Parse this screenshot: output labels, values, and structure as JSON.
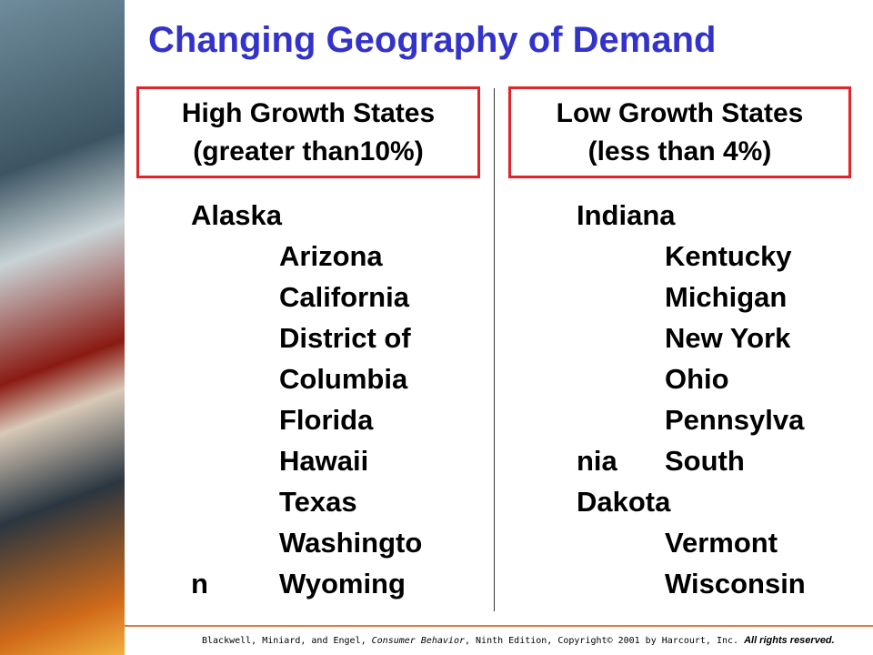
{
  "title": "Changing Geography of Demand",
  "columns": [
    {
      "header": [
        "High Growth States",
        "(greater than10%)"
      ],
      "rows": [
        {
          "a": "Alaska"
        },
        {
          "b": "Arizona"
        },
        {
          "b": "California"
        },
        {
          "b": "District of"
        },
        {
          "b": "Columbia"
        },
        {
          "b": "Florida"
        },
        {
          "b": "Hawaii"
        },
        {
          "b": "Texas"
        },
        {
          "b": "Washingto"
        },
        {
          "a": "n",
          "b": "Wyoming"
        }
      ]
    },
    {
      "header": [
        "Low Growth States",
        "(less than 4%)"
      ],
      "rows": [
        {
          "a": "Indiana"
        },
        {
          "b": "Kentucky"
        },
        {
          "b": "Michigan"
        },
        {
          "b": "New York"
        },
        {
          "b": "Ohio"
        },
        {
          "b": "Pennsylva"
        },
        {
          "a": "nia",
          "b": "South"
        },
        {
          "a": "Dakota"
        },
        {
          "b": "Vermont"
        },
        {
          "b": "Wisconsin"
        }
      ]
    }
  ],
  "footer": {
    "text": "Blackwell, Miniard, and Engel, ",
    "book": "Consumer Behavior",
    "rest": ", Ninth Edition, Copyright© 2001 by Harcourt, Inc.",
    "rights": "All rights reserved."
  }
}
